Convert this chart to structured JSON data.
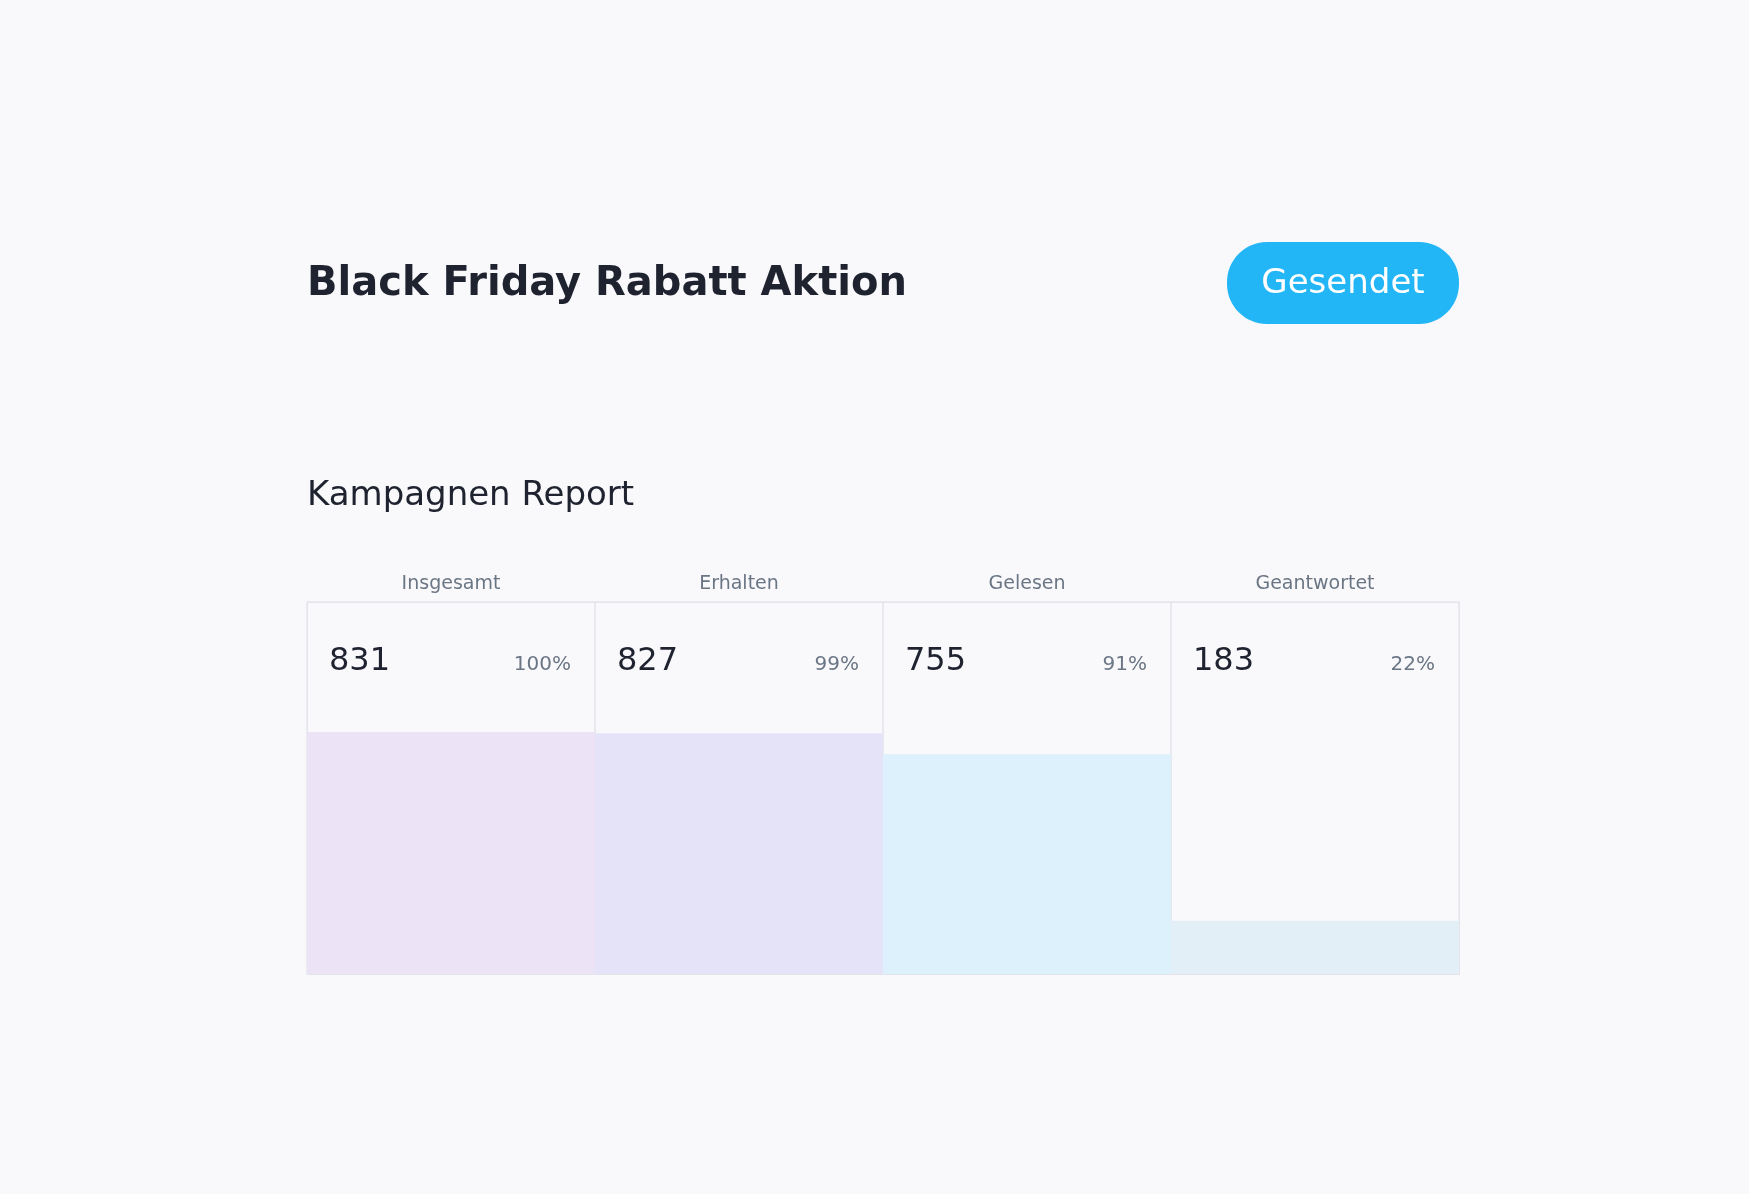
{
  "chart_data": {
    "type": "bar",
    "title": "Black Friday Rabatt Aktion",
    "subtitle": "Kampagnen Report",
    "categories": [
      "Insgesamt",
      "Erhalten",
      "Gelesen",
      "Geantwortet"
    ],
    "values": [
      831,
      827,
      755,
      183
    ],
    "colors": [
      "#ece3f7",
      "#e4e3f8",
      "#dcf1fb",
      "#e2eff7"
    ],
    "data_labels": true,
    "annotations": [
      "Gesendet",
      "100%",
      "99%",
      "91%",
      "22%"
    ]
  }
}
